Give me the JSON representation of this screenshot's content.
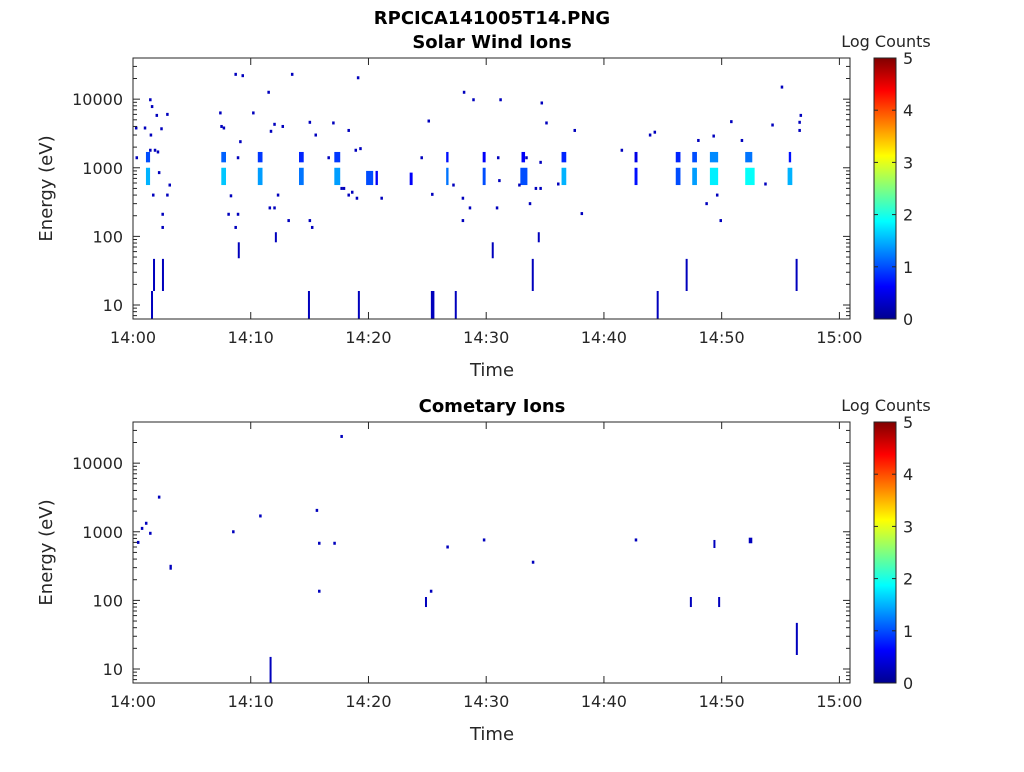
{
  "figure_title": "RPCICA141005T14.PNG",
  "chart_data": [
    {
      "type": "heatmap",
      "title": "Solar Wind Ions",
      "xlabel": "Time",
      "ylabel": "Energy (eV)",
      "x_units": "minutes after 14:00",
      "xlim": [
        0,
        60.9
      ],
      "ylim": [
        6.25,
        39800
      ],
      "yscale": "log",
      "xticks": [
        0,
        10,
        20,
        30,
        40,
        50,
        60
      ],
      "xtick_labels": [
        "14:00",
        "14:10",
        "14:20",
        "14:30",
        "14:40",
        "14:50",
        "15:00"
      ],
      "yticks": [
        10,
        100,
        1000,
        10000
      ],
      "ytick_labels": [
        "10",
        "100",
        "1000",
        "10000"
      ],
      "colorbar": {
        "label": "Log Counts",
        "range": [
          0,
          5
        ],
        "ticks": [
          "0",
          "1",
          "2",
          "3",
          "4",
          "5"
        ],
        "colormap": "jet"
      },
      "clusters_note": "cells: [time_start_min, duration_min, energy_low_eV, energy_high_eV, log_counts]",
      "cells": [
        [
          1.1,
          0.35,
          560,
          1000,
          1.5
        ],
        [
          1.1,
          0.35,
          1200,
          1700,
          1.0
        ],
        [
          7.5,
          0.4,
          560,
          1000,
          1.6
        ],
        [
          7.5,
          0.4,
          1200,
          1700,
          1.1
        ],
        [
          10.6,
          0.4,
          560,
          1000,
          1.4
        ],
        [
          10.6,
          0.4,
          1200,
          1700,
          0.9
        ],
        [
          14.1,
          0.4,
          560,
          1000,
          1.2
        ],
        [
          14.1,
          0.4,
          1200,
          1700,
          0.8
        ],
        [
          17.1,
          0.5,
          560,
          1000,
          1.4
        ],
        [
          17.1,
          0.5,
          1200,
          1700,
          0.9
        ],
        [
          19.8,
          0.6,
          560,
          900,
          1.0
        ],
        [
          20.6,
          0.2,
          560,
          900,
          0.6
        ],
        [
          23.5,
          0.25,
          560,
          850,
          0.6
        ],
        [
          26.6,
          0.2,
          560,
          1000,
          1.2
        ],
        [
          26.6,
          0.2,
          1200,
          1700,
          0.7
        ],
        [
          29.7,
          0.25,
          560,
          1000,
          1.0
        ],
        [
          29.7,
          0.25,
          1200,
          1700,
          0.6
        ],
        [
          32.9,
          0.6,
          560,
          1000,
          1.0
        ],
        [
          33.0,
          0.3,
          1200,
          1700,
          0.6
        ],
        [
          36.4,
          0.4,
          560,
          1000,
          1.5
        ],
        [
          36.4,
          0.4,
          1200,
          1700,
          0.8
        ],
        [
          42.6,
          0.25,
          560,
          1000,
          0.7
        ],
        [
          42.6,
          0.25,
          1200,
          1700,
          0.5
        ],
        [
          46.1,
          0.4,
          560,
          1000,
          1.0
        ],
        [
          46.1,
          0.4,
          1200,
          1700,
          0.8
        ],
        [
          47.5,
          0.4,
          560,
          1000,
          1.4
        ],
        [
          47.5,
          0.4,
          1200,
          1700,
          1.0
        ],
        [
          49.0,
          0.7,
          560,
          1000,
          1.8
        ],
        [
          49.0,
          0.7,
          1200,
          1700,
          1.3
        ],
        [
          52.0,
          0.8,
          560,
          1000,
          1.9
        ],
        [
          52.0,
          0.6,
          1200,
          1700,
          1.2
        ],
        [
          55.6,
          0.4,
          560,
          1000,
          1.5
        ],
        [
          55.7,
          0.2,
          1200,
          1700,
          0.7
        ],
        [
          1.53,
          0.15,
          6.3,
          16,
          0.3
        ],
        [
          1.7,
          0.15,
          16,
          47,
          0.3
        ],
        [
          2.46,
          0.15,
          16,
          47,
          0.3
        ],
        [
          14.86,
          0.15,
          6.3,
          16,
          0.3
        ],
        [
          19.1,
          0.15,
          6.3,
          16,
          0.3
        ],
        [
          25.3,
          0.3,
          6.3,
          16,
          0.3
        ],
        [
          27.33,
          0.15,
          6.3,
          16,
          0.3
        ],
        [
          30.47,
          0.15,
          48,
          82,
          0.3
        ],
        [
          33.87,
          0.15,
          16,
          47,
          0.3
        ],
        [
          34.38,
          0.15,
          82,
          115,
          0.3
        ],
        [
          44.48,
          0.15,
          6.3,
          16,
          0.3
        ],
        [
          46.94,
          0.15,
          16,
          47,
          0.3
        ],
        [
          56.28,
          0.15,
          16,
          47,
          0.3
        ],
        [
          12.05,
          0.15,
          82,
          115,
          0.3
        ],
        [
          8.9,
          0.15,
          48,
          82,
          0.3
        ]
      ],
      "points_note": "isolated single-count bins: [time_min, energy_eV]",
      "points": [
        [
          0.25,
          3800
        ],
        [
          1.0,
          3800
        ],
        [
          1.45,
          9800
        ],
        [
          1.6,
          7800
        ],
        [
          2.0,
          5800
        ],
        [
          2.4,
          3700
        ],
        [
          2.9,
          6000
        ],
        [
          1.5,
          3000
        ],
        [
          1.45,
          1800
        ],
        [
          1.85,
          1800
        ],
        [
          2.1,
          1700
        ],
        [
          0.3,
          1400
        ],
        [
          2.2,
          850
        ],
        [
          1.7,
          400
        ],
        [
          2.5,
          210
        ],
        [
          2.5,
          135
        ],
        [
          3.1,
          560
        ],
        [
          2.9,
          400
        ],
        [
          7.4,
          6300
        ],
        [
          7.5,
          4000
        ],
        [
          7.7,
          3800
        ],
        [
          8.7,
          23000
        ],
        [
          9.3,
          22000
        ],
        [
          10.2,
          6300
        ],
        [
          9.1,
          2400
        ],
        [
          8.9,
          1400
        ],
        [
          8.7,
          135
        ],
        [
          8.1,
          210
        ],
        [
          8.9,
          210
        ],
        [
          8.3,
          390
        ],
        [
          11.5,
          12600
        ],
        [
          12.0,
          4300
        ],
        [
          11.7,
          3400
        ],
        [
          12.7,
          4000
        ],
        [
          12.3,
          400
        ],
        [
          11.6,
          260
        ],
        [
          12.0,
          260
        ],
        [
          13.2,
          170
        ],
        [
          13.5,
          23000
        ],
        [
          15.0,
          4600
        ],
        [
          15.5,
          3000
        ],
        [
          17.0,
          4500
        ],
        [
          19.1,
          20500
        ],
        [
          18.3,
          3500
        ],
        [
          18.9,
          1800
        ],
        [
          19.3,
          1900
        ],
        [
          17.9,
          500
        ],
        [
          18.6,
          440
        ],
        [
          19.0,
          360
        ],
        [
          21.1,
          360
        ],
        [
          15.0,
          170
        ],
        [
          15.2,
          135
        ],
        [
          25.1,
          4800
        ],
        [
          24.5,
          1400
        ],
        [
          25.4,
          410
        ],
        [
          28.1,
          12600
        ],
        [
          28.9,
          9800
        ],
        [
          28.0,
          360
        ],
        [
          28.0,
          170
        ],
        [
          28.6,
          260
        ],
        [
          31.2,
          9800
        ],
        [
          30.9,
          260
        ],
        [
          34.7,
          8800
        ],
        [
          35.1,
          4500
        ],
        [
          37.5,
          3500
        ],
        [
          33.7,
          300
        ],
        [
          38.1,
          215
        ],
        [
          34.2,
          500
        ],
        [
          34.6,
          500
        ],
        [
          41.5,
          1800
        ],
        [
          43.9,
          3000
        ],
        [
          44.3,
          3300
        ],
        [
          48.0,
          2500
        ],
        [
          49.3,
          2900
        ],
        [
          50.8,
          4700
        ],
        [
          51.7,
          2500
        ],
        [
          54.3,
          4200
        ],
        [
          55.1,
          15000
        ],
        [
          56.6,
          3500
        ],
        [
          56.6,
          4600
        ],
        [
          56.7,
          5800
        ],
        [
          48.7,
          300
        ],
        [
          49.9,
          170
        ],
        [
          49.6,
          400
        ],
        [
          53.7,
          580
        ],
        [
          32.8,
          560
        ],
        [
          27.2,
          560
        ],
        [
          31.1,
          650
        ],
        [
          36.1,
          580
        ],
        [
          18.3,
          400
        ],
        [
          17.7,
          500
        ],
        [
          33.4,
          1400
        ],
        [
          34.6,
          1200
        ],
        [
          31.0,
          1400
        ],
        [
          16.6,
          1400
        ]
      ]
    },
    {
      "type": "heatmap",
      "title": "Cometary Ions",
      "xlabel": "Time",
      "ylabel": "Energy (eV)",
      "x_units": "minutes after 14:00",
      "xlim": [
        0,
        60.9
      ],
      "ylim": [
        6.25,
        39800
      ],
      "yscale": "log",
      "xticks": [
        0,
        10,
        20,
        30,
        40,
        50,
        60
      ],
      "xtick_labels": [
        "14:00",
        "14:10",
        "14:20",
        "14:30",
        "14:40",
        "14:50",
        "15:00"
      ],
      "yticks": [
        10,
        100,
        1000,
        10000
      ],
      "ytick_labels": [
        "10",
        "100",
        "1000",
        "10000"
      ],
      "colorbar": {
        "label": "Log Counts",
        "range": [
          0,
          5
        ],
        "ticks": [
          "0",
          "1",
          "2",
          "3",
          "4",
          "5"
        ],
        "colormap": "jet"
      },
      "cells": [
        [
          11.6,
          0.15,
          6.3,
          15,
          0.3
        ],
        [
          24.8,
          0.15,
          80,
          112,
          0.3
        ],
        [
          47.3,
          0.15,
          80,
          112,
          0.3
        ],
        [
          49.7,
          0.15,
          80,
          112,
          0.3
        ],
        [
          56.3,
          0.15,
          16,
          47,
          0.3
        ],
        [
          49.3,
          0.15,
          580,
          760,
          0.3
        ],
        [
          52.3,
          0.3,
          680,
          820,
          0.3
        ],
        [
          3.1,
          0.2,
          280,
          330,
          0.3
        ]
      ],
      "points": [
        [
          0.42,
          700
        ],
        [
          0.75,
          1120
        ],
        [
          1.1,
          1330
        ],
        [
          1.45,
          950
        ],
        [
          2.2,
          3200
        ],
        [
          8.5,
          1000
        ],
        [
          10.8,
          1700
        ],
        [
          15.6,
          2050
        ],
        [
          15.8,
          680
        ],
        [
          15.8,
          136
        ],
        [
          17.1,
          680
        ],
        [
          17.7,
          24500
        ],
        [
          25.3,
          136
        ],
        [
          26.7,
          600
        ],
        [
          29.8,
          760
        ],
        [
          33.96,
          360
        ],
        [
          42.7,
          760
        ]
      ]
    }
  ]
}
